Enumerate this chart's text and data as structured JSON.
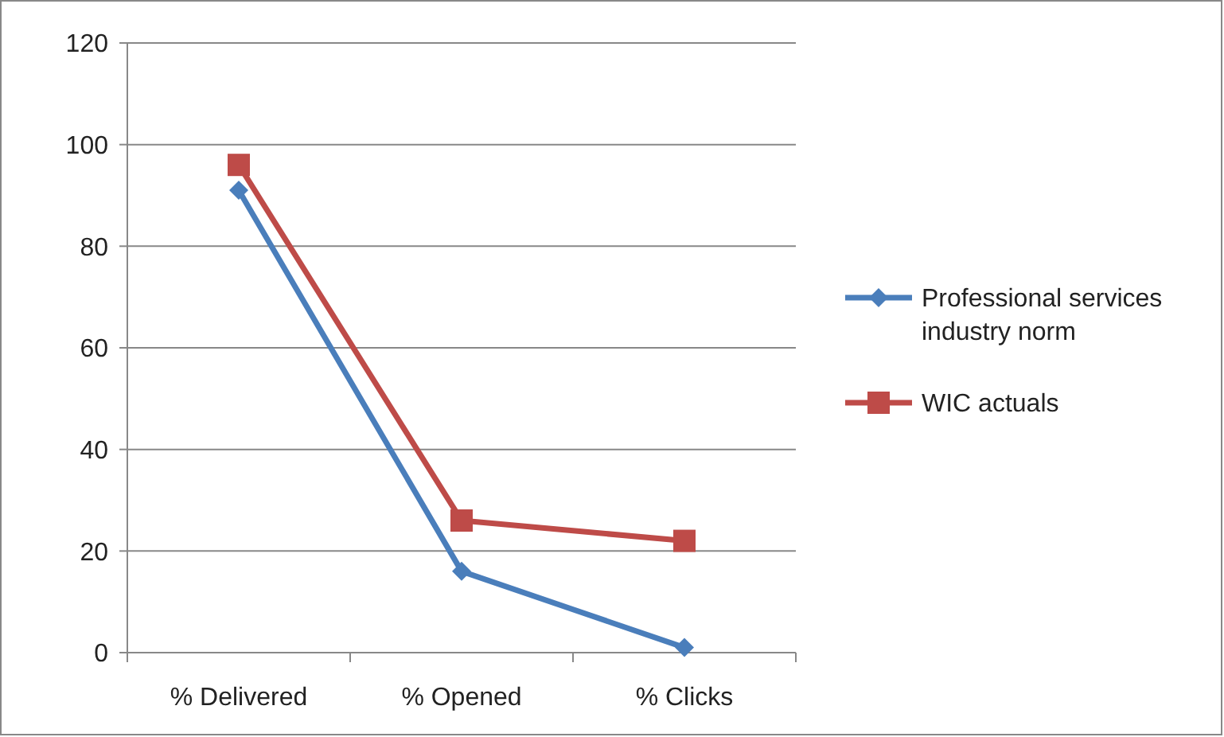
{
  "chart_data": {
    "type": "line",
    "categories": [
      "% Delivered",
      "% Opened",
      "% Clicks"
    ],
    "series": [
      {
        "name": "Professional services industry norm",
        "color": "#4a7ebb",
        "values": [
          91,
          16,
          1
        ],
        "marker": "diamond"
      },
      {
        "name": "WIC actuals",
        "color": "#be4b48",
        "values": [
          96,
          26,
          22
        ],
        "marker": "square"
      }
    ],
    "ylim": [
      0,
      120
    ],
    "yticks": [
      0,
      20,
      40,
      60,
      80,
      100,
      120
    ],
    "grid": "y",
    "legend": "right"
  }
}
